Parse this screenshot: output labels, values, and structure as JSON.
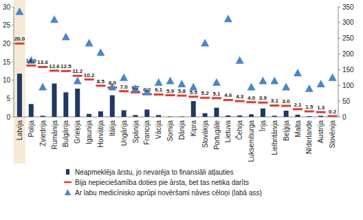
{
  "chart_data": {
    "type": "bar",
    "categories": [
      "Latvija",
      "Polija",
      "Zviedrija",
      "Rumānija",
      "Bulgārija",
      "Grieķija",
      "Igaunija",
      "Horvātija",
      "Itālija",
      "Ungārija",
      "Spānija",
      "Francija",
      "Vācija",
      "Somija",
      "Dānija",
      "Kipra",
      "Slovākija",
      "Portugāle",
      "Lietuva",
      "Čehija",
      "Luksemburga",
      "Īrija",
      "Lielbritānija",
      "Beļģija",
      "Malta",
      "Nīderlande",
      "Austrija",
      "Slovēnija"
    ],
    "series": [
      {
        "name": "Neapmeklēja ārstu, jo nevarēja to finansiāli atļauties",
        "type": "bar",
        "color": "#1f3864",
        "values": [
          11.8,
          3.5,
          0.3,
          9.1,
          6.7,
          7.7,
          0.8,
          1.5,
          5.9,
          1.8,
          0.5,
          2.0,
          0.5,
          0.1,
          0.1,
          4.3,
          1.0,
          2.5,
          0.4,
          0.4,
          0.7,
          2.3,
          0.3,
          1.7,
          0.6,
          0.2,
          0.3,
          0.1
        ]
      },
      {
        "name": "Bija nepieciešamība doties pie ārsta, bet tas netika darīts",
        "type": "scatter",
        "marker": "dash",
        "color": "#e03c31",
        "data_labels": true,
        "values": [
          20.0,
          14.0,
          13.6,
          12.6,
          12.5,
          11.2,
          10.2,
          8.5,
          8.0,
          7.0,
          6.7,
          6.2,
          6.1,
          5.9,
          5.8,
          5.5,
          5.2,
          5.1,
          4.6,
          4.3,
          4.0,
          3.9,
          3.1,
          3.0,
          2.1,
          1.5,
          1.3,
          0.2
        ],
        "value_labels": [
          "20.0",
          "14.0",
          "13.6",
          "12.6",
          "12.5",
          "11.2",
          "10.2",
          "8.5",
          "8.0",
          "7.0",
          "6.7",
          "6.2",
          "6.1",
          "5.9",
          "5.8",
          "5.5",
          "5.2",
          "5.1",
          "4.6",
          "4.3",
          "4.0",
          "3.9",
          "3.1",
          "3.0",
          "2.1",
          "1.5",
          "1.3",
          "0.2"
        ]
      },
      {
        "name": "Ar labu medicīnisko aprūpi novēršami nāves cēloņi (labā ass)",
        "type": "scatter",
        "marker": "triangle",
        "color": "#4a86c8",
        "axis": "y2",
        "values": [
          335,
          180,
          95,
          310,
          255,
          115,
          235,
          205,
          95,
          125,
          90,
          80,
          110,
          115,
          105,
          95,
          235,
          110,
          312,
          180,
          95,
          115,
          115,
          95,
          140,
          90,
          105,
          125
        ]
      }
    ],
    "ylim": [
      0,
      30
    ],
    "yticks": [
      0,
      5,
      10,
      15,
      20,
      25,
      30
    ],
    "y2lim": [
      0,
      350
    ],
    "y2ticks": [
      0,
      50,
      100,
      150,
      200,
      250,
      300,
      350
    ],
    "grid": false,
    "legend": "bottom-left"
  }
}
